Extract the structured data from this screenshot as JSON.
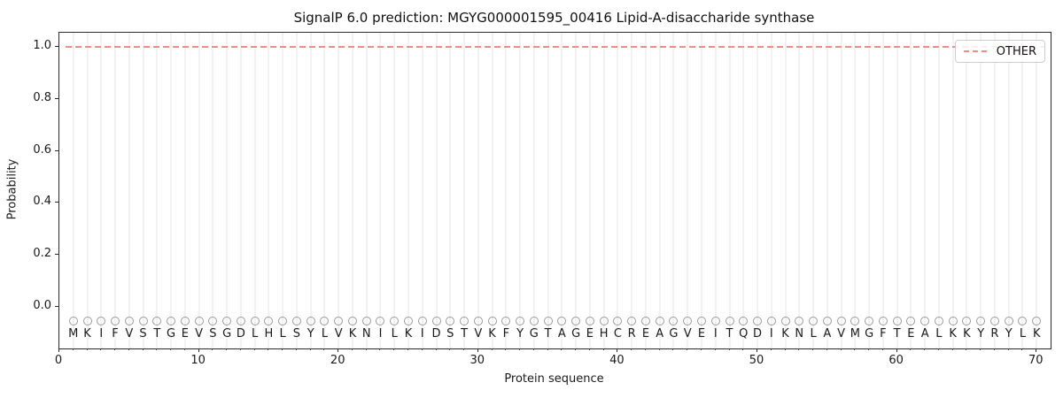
{
  "chart_data": {
    "type": "line",
    "title": "SignalP 6.0 prediction: MGYG000001595_00416 Lipid-A-disaccharide synthase",
    "xlabel": "Protein sequence",
    "ylabel": "Probability",
    "xlim": [
      0,
      71
    ],
    "ylim": [
      -0.16,
      1.054
    ],
    "x_ticks": [
      0,
      10,
      20,
      30,
      40,
      50,
      60,
      70
    ],
    "y_ticks": [
      0.0,
      0.2,
      0.4,
      0.6,
      0.8,
      1.0
    ],
    "grid": {
      "vertical_per_residue": true,
      "color": "#f2f2f2"
    },
    "legend": {
      "position": "upper-right",
      "entries": [
        {
          "label": "OTHER",
          "color": "#f28a8a",
          "linestyle": "dashed"
        }
      ]
    },
    "series": [
      {
        "name": "OTHER",
        "color": "#f28a8a",
        "linestyle": "dashed",
        "x": [
          1,
          70
        ],
        "y": [
          1.0,
          1.0
        ]
      }
    ],
    "sequence": "MKIFVSTGEVSGDLHLSYLVKNILKIDSTVKFYGTAGEHCREAGVEITQDIKNLAVMGFTEALKKYRYLK",
    "sequence_marker": {
      "symbol": "circle-outline",
      "y": -0.055,
      "color": "#9a9a9a"
    },
    "sequence_letter_y": -0.105
  }
}
